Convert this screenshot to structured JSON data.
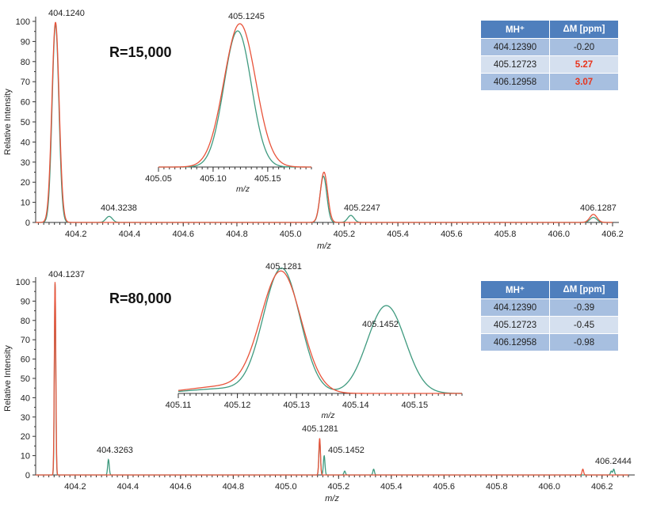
{
  "colors": {
    "series_a": "#e8533a",
    "series_b": "#3f9a7f",
    "table_header": "#4f7fbd"
  },
  "chart_data": [
    {
      "type": "line",
      "panel": "top",
      "resolution_label": "R=15,000",
      "xlabel": "m/z",
      "ylabel": "Relative Intensity",
      "xlim": [
        404.05,
        406.2
      ],
      "ylim": [
        0,
        100
      ],
      "xticks": [
        "404.2",
        "404.4",
        "404.6",
        "404.8",
        "405.0",
        "405.2",
        "405.4",
        "405.6",
        "405.8",
        "406.0",
        "406.2"
      ],
      "yticks": [
        "0",
        "10",
        "20",
        "30",
        "40",
        "50",
        "60",
        "70",
        "80",
        "90",
        "100"
      ],
      "peak_labels": [
        "404.1240",
        "404.3238",
        "405.2247",
        "406.1287"
      ],
      "series": [
        {
          "peaks": [
            [
              404.124,
              99.5,
              0.0135
            ],
            [
              405.1245,
              25,
              0.0135
            ],
            [
              406.1287,
              4,
              0.0135
            ]
          ]
        },
        {
          "peaks": [
            [
              404.124,
              98.5,
              0.0125
            ],
            [
              404.3238,
              3,
              0.012
            ],
            [
              405.1225,
              23,
              0.0125
            ],
            [
              405.2247,
              3.5,
              0.012
            ],
            [
              406.1287,
              2.5,
              0.0125
            ]
          ]
        }
      ],
      "inset": {
        "xlabel": "m/z",
        "xlim": [
          405.05,
          405.19
        ],
        "xticks": [
          "405.05",
          "405.10",
          "405.15"
        ],
        "peak_labels": [
          "405.1245"
        ],
        "series": [
          {
            "peaks": [
              [
                405.1245,
                100,
                0.0145
              ]
            ]
          },
          {
            "peaks": [
              [
                405.1225,
                95,
                0.0125
              ]
            ]
          }
        ]
      },
      "table": {
        "headers": [
          "MH⁺",
          "ΔM [ppm]"
        ],
        "rows": [
          {
            "mh": "404.12390",
            "dm": "-0.20",
            "highlight": false
          },
          {
            "mh": "405.12723",
            "dm": "5.27",
            "highlight": true
          },
          {
            "mh": "406.12958",
            "dm": "3.07",
            "highlight": true
          }
        ]
      }
    },
    {
      "type": "line",
      "panel": "bottom",
      "resolution_label": "R=80,000",
      "xlabel": "m/z",
      "ylabel": "Relative Intensity",
      "xlim": [
        404.05,
        406.3
      ],
      "ylim": [
        0,
        100
      ],
      "xticks": [
        "404.2",
        "404.4",
        "404.6",
        "404.8",
        "405.0",
        "405.2",
        "405.4",
        "405.6",
        "405.8",
        "406.0",
        "406.2"
      ],
      "yticks": [
        "0",
        "10",
        "20",
        "30",
        "40",
        "50",
        "60",
        "70",
        "80",
        "90",
        "100"
      ],
      "peak_labels": [
        "404.1237",
        "404.3263",
        "405.1281",
        "405.1452",
        "406.2444"
      ],
      "series": [
        {
          "peaks": [
            [
              404.1237,
              100,
              0.0028
            ],
            [
              405.1281,
              19,
              0.003
            ],
            [
              406.127,
              3,
              0.003
            ]
          ]
        },
        {
          "peaks": [
            [
              404.1237,
              99,
              0.0026
            ],
            [
              404.3263,
              8,
              0.003
            ],
            [
              405.1281,
              18,
              0.003
            ],
            [
              405.1452,
              10,
              0.003
            ],
            [
              405.223,
              2,
              0.003
            ],
            [
              405.333,
              3,
              0.003
            ],
            [
              406.235,
              2,
              0.003
            ],
            [
              406.2444,
              3,
              0.003
            ]
          ]
        }
      ],
      "inset": {
        "xlabel": "m/z",
        "xlim": [
          405.11,
          405.158
        ],
        "xticks": [
          "405.11",
          "405.12",
          "405.13",
          "405.14",
          "405.15"
        ],
        "peak_labels": [
          "405.1281",
          "405.1452"
        ],
        "series": [
          {
            "peaks": [
              [
                405.1274,
                100,
                0.0034
              ],
              [
                405.118,
                6,
                0.006
              ]
            ]
          },
          {
            "peaks": [
              [
                405.1275,
                103,
                0.0031
              ],
              [
                405.1452,
                73,
                0.0032
              ],
              [
                405.118,
                4,
                0.006
              ]
            ]
          }
        ]
      },
      "table": {
        "headers": [
          "MH⁺",
          "ΔM [ppm]"
        ],
        "rows": [
          {
            "mh": "404.12390",
            "dm": "-0.39",
            "highlight": false
          },
          {
            "mh": "405.12723",
            "dm": "-0.45",
            "highlight": false
          },
          {
            "mh": "406.12958",
            "dm": "-0.98",
            "highlight": false
          }
        ]
      }
    }
  ]
}
